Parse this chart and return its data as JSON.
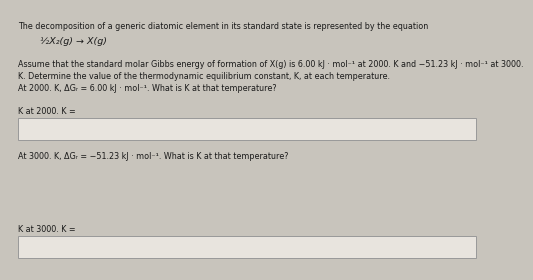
{
  "background_color": "#c8c4bc",
  "text_color": "#1a1a1a",
  "title_line": "The decomposition of a generic diatomic element in its standard state is represented by the equation",
  "equation": "½X₂(g) → X(g)",
  "para1_line1": "Assume that the standard molar Gibbs energy of formation of X(g) is 6.00 kJ · mol⁻¹ at 2000. K and −51.23 kJ · mol⁻¹ at 3000.",
  "para1_line2": "K. Determine the value of the thermodynamic equilibrium constant, K, at each temperature.",
  "q1_line": "At 2000. K, ΔGᵣ = 6.00 kJ · mol⁻¹. What is K at that temperature?",
  "label1": "K at 2000. K =",
  "q2_line": "At 3000. K, ΔGᵣ = −51.23 kJ · mol⁻¹. What is K at that temperature?",
  "label2": "K at 3000. K =",
  "box_color": "#e8e4de",
  "box_edge_color": "#999999",
  "font_size_main": 5.8,
  "font_size_eq": 6.8,
  "font_size_label": 5.8
}
